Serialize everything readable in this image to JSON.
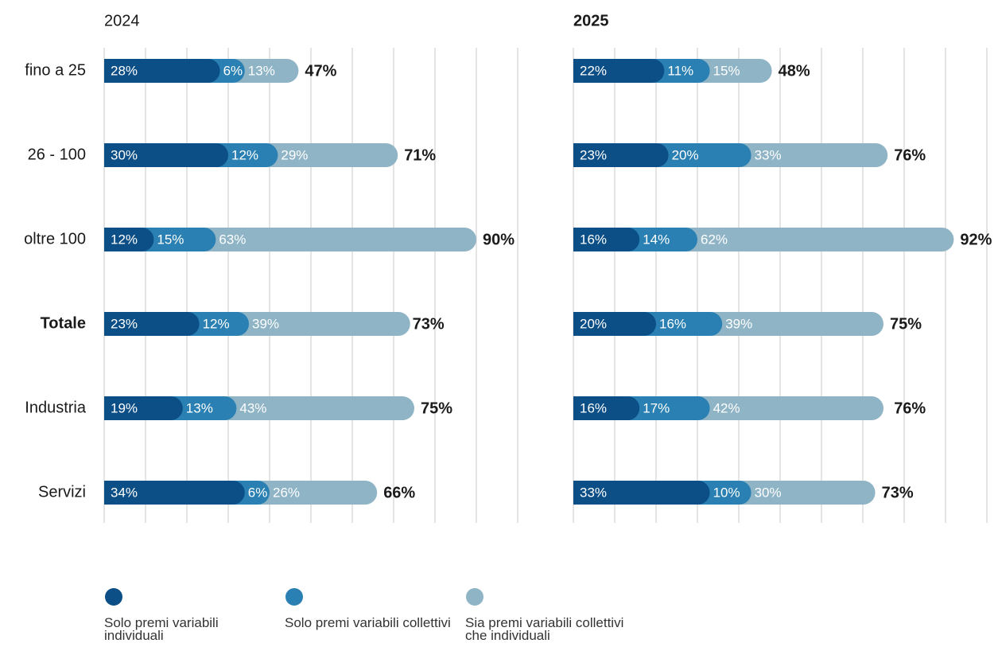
{
  "chart_data": [
    {
      "type": "stacked_barh",
      "title": "2024",
      "categories": [
        "fino a 25",
        "26 - 100",
        "oltre 100",
        "Totale",
        "Industria",
        "Servizi"
      ],
      "series": [
        {
          "name": "Solo premi variabili individuali",
          "color": "#0b4f86",
          "values": [
            28,
            30,
            12,
            23,
            19,
            34
          ],
          "value_labels": [
            "28%",
            "30%",
            "12%",
            "23%",
            "19%",
            "34%"
          ]
        },
        {
          "name": "Solo premi variabili collettivi",
          "color": "#2a80b2",
          "values": [
            6,
            12,
            15,
            12,
            13,
            6
          ],
          "value_labels": [
            "6%",
            "12%",
            "15%",
            "12%",
            "13%",
            "6%"
          ]
        },
        {
          "name": "Sia premi variabili collettivi che individuali",
          "color": "#8fb4c6",
          "values": [
            13,
            29,
            63,
            39,
            43,
            26
          ],
          "value_labels": [
            "13%",
            "29%",
            "63%",
            "39%",
            "43%",
            "26%"
          ]
        }
      ],
      "totals": [
        47,
        71,
        90,
        73,
        75,
        66
      ],
      "totals_labels": [
        "47%",
        "71%",
        "90%",
        "73%",
        "75%",
        "66%"
      ],
      "xlim": [
        0,
        100
      ],
      "xticks": [
        0,
        10,
        20,
        30,
        40,
        50,
        60,
        70,
        80,
        90,
        100
      ],
      "grid": true
    },
    {
      "type": "stacked_barh",
      "title": "2025",
      "series": [
        {
          "color": "#0b4f86",
          "values": [
            22,
            23,
            16,
            20,
            16,
            33
          ],
          "value_labels": [
            "22%",
            "23%",
            "16%",
            "20%",
            "16%",
            "33%"
          ]
        },
        {
          "color": "#2a80b2",
          "values": [
            11,
            20,
            14,
            16,
            17,
            10
          ],
          "value_labels": [
            "11%",
            "20%",
            "14%",
            "16%",
            "17%",
            "10%"
          ]
        },
        {
          "color": "#8fb4c6",
          "values": [
            15,
            33,
            62,
            39,
            42,
            30
          ],
          "value_labels": [
            "15%",
            "33%",
            "62%",
            "39%",
            "42%",
            "30%"
          ]
        }
      ],
      "totals": [
        48,
        76,
        92,
        75,
        76,
        73
      ],
      "totals_labels": [
        "48%",
        "76%",
        "92%",
        "75%",
        "76%",
        "73%"
      ],
      "xlim": [
        0,
        100
      ],
      "xticks": [
        0,
        10,
        20,
        30,
        40,
        50,
        60,
        70,
        80,
        90,
        100
      ],
      "grid": true
    }
  ]
}
